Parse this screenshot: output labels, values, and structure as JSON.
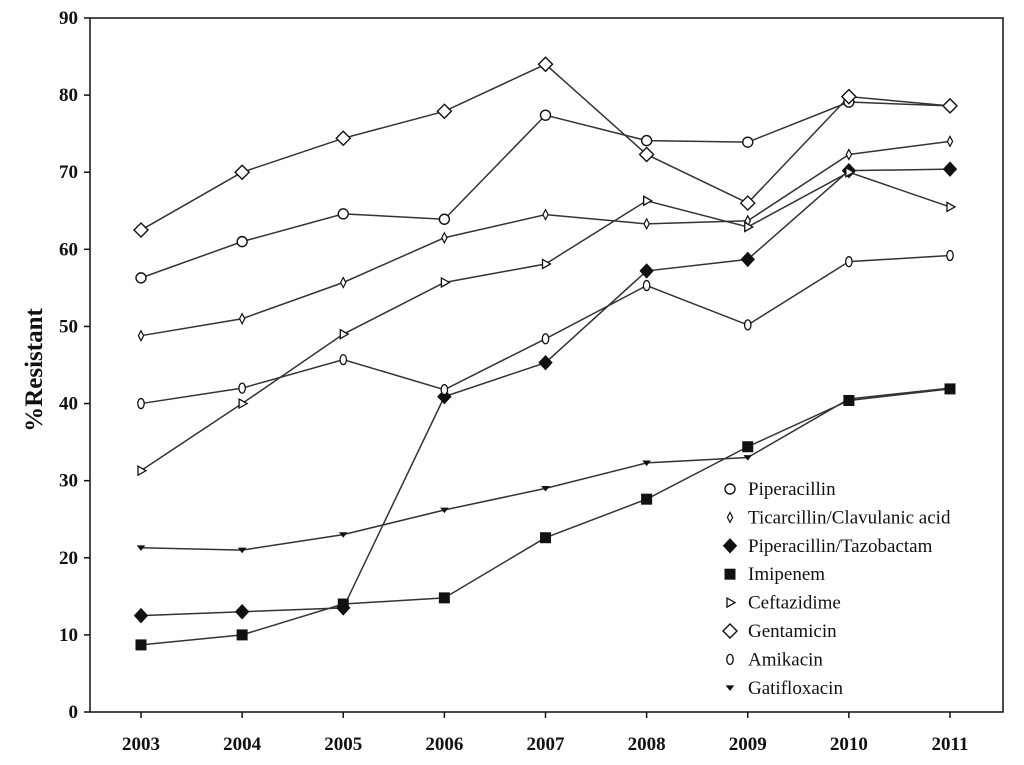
{
  "chart_data": {
    "type": "line",
    "title": "",
    "xlabel": "",
    "ylabel": "%Resistant",
    "ylim": [
      0,
      90
    ],
    "yticks": [
      "0",
      "10",
      "20",
      "30",
      "40",
      "50",
      "60",
      "70",
      "80",
      "90"
    ],
    "categories": [
      "2003",
      "2004",
      "2005",
      "2006",
      "2007",
      "2008",
      "2009",
      "2010",
      "2011"
    ],
    "grid": false,
    "legend_position": "bottom-right",
    "series": [
      {
        "name": "Piperacillin",
        "marker": "circle-open",
        "values": [
          56.3,
          61.0,
          64.6,
          63.9,
          77.4,
          74.1,
          73.9,
          79.1,
          78.6
        ]
      },
      {
        "name": "Ticarcillin/Clavulanic acid",
        "marker": "thin-diamond-open",
        "values": [
          48.8,
          51.0,
          55.7,
          61.5,
          64.5,
          63.3,
          63.7,
          72.3,
          74.0
        ]
      },
      {
        "name": "Piperacillin/Tazobactam",
        "marker": "diamond-filled",
        "values": [
          12.5,
          13.0,
          13.5,
          40.9,
          45.3,
          57.2,
          58.7,
          70.2,
          70.4
        ]
      },
      {
        "name": "Imipenem",
        "marker": "square-filled",
        "values": [
          8.7,
          10.0,
          14.0,
          14.8,
          22.6,
          27.6,
          34.4,
          40.4,
          41.9
        ]
      },
      {
        "name": "Ceftazidime",
        "marker": "triangle-right-open",
        "values": [
          31.3,
          40.0,
          49.0,
          55.7,
          58.1,
          66.3,
          62.9,
          70.0,
          65.5
        ]
      },
      {
        "name": "Gentamicin",
        "marker": "diamond-open",
        "values": [
          62.5,
          70.0,
          74.4,
          77.9,
          84.0,
          72.3,
          66.0,
          79.8,
          78.6
        ]
      },
      {
        "name": "Amikacin",
        "marker": "ellipse-open",
        "values": [
          40.0,
          42.0,
          45.7,
          41.8,
          48.4,
          55.3,
          50.2,
          58.4,
          59.2
        ]
      },
      {
        "name": "Gatifloxacin",
        "marker": "triangle-down-small",
        "values": [
          21.3,
          21.0,
          23.0,
          26.2,
          29.0,
          32.3,
          33.0,
          40.6,
          42.0
        ]
      }
    ]
  }
}
